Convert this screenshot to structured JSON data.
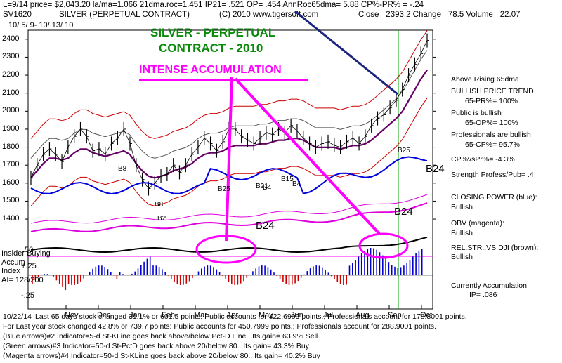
{
  "header": {
    "line1": "L=9/14  price= $2,043.20  la/ma=1.066 21dma.roc=1.451  IP21= .521  OP= .454  AnnRoc65dma= 5.88  CP%-PR% = -.24",
    "ticker": "SV1620",
    "contract": "SILVER (PERPETUAL CONTRACT)",
    "copyright": "(C) 2010 www.tigersoft.com",
    "close_text": "Close=   2393.2  Change= 78.5 Volume= 22.07",
    "date_range": "10/ 5/ 9-  10/ 13/ 10"
  },
  "title_overlay": {
    "line1": "SILVER - PERPETUAL",
    "line2": "CONTRACT - 2010",
    "callout": "INTENSE ACCUMULATION"
  },
  "colors": {
    "price": "#000000",
    "closing_power": "#0000dd",
    "obv": "#dd00dd",
    "relstr": "#000000",
    "ma": "#cc0000",
    "ma65": "#660066",
    "callout": "#ff00ff",
    "title": "#0a8a0a",
    "pos_bars": "#0000cc",
    "neg_bars": "#cc0000"
  },
  "chart_data": {
    "type": "line",
    "ylabel_ticks": [
      "2400",
      "2300",
      "2200",
      "2100",
      "2000",
      "1900",
      "1800",
      "1700",
      "1600",
      "1500",
      "1400"
    ],
    "y_ticks": [
      2400,
      2300,
      2200,
      2100,
      2000,
      1900,
      1800,
      1700,
      1600,
      1500,
      1400
    ],
    "months": [
      "Nov",
      "Dec",
      "Jan",
      "Feb",
      "Mar",
      "Apr",
      "May",
      "Jun",
      "Jul",
      "Aug",
      "Sep",
      "Oct"
    ],
    "ylim": [
      1330,
      2450
    ],
    "series": [
      {
        "x": [
          0,
          4,
          8,
          12,
          16,
          20,
          24,
          28,
          32,
          36,
          40,
          44,
          48,
          52,
          56,
          60,
          64,
          68,
          72,
          76,
          80,
          84,
          88,
          92,
          96,
          100,
          104,
          108,
          112,
          116,
          120,
          124,
          128,
          132,
          136,
          140,
          144,
          148,
          152,
          156,
          160,
          164,
          168,
          172,
          176,
          180,
          184,
          188,
          192,
          196,
          200,
          204,
          208,
          212,
          216,
          220,
          224,
          228,
          232,
          236,
          240,
          244,
          248,
          252,
          256
        ],
        "values": [
          1630,
          1700,
          1760,
          1790,
          1760,
          1720,
          1800,
          1860,
          1900,
          1860,
          1780,
          1790,
          1760,
          1820,
          1850,
          1900,
          1820,
          1700,
          1620,
          1570,
          1600,
          1640,
          1650,
          1700,
          1660,
          1700,
          1760,
          1800,
          1850,
          1820,
          1780,
          1830,
          1900,
          1900,
          1860,
          1840,
          1820,
          1850,
          1880,
          1870,
          1900,
          1880,
          1920,
          1890,
          1850,
          1820,
          1800,
          1820,
          1830,
          1810,
          1800,
          1830,
          1850,
          1820,
          1860,
          1920,
          1960,
          1980,
          2020,
          2060,
          2120,
          2200,
          2260,
          2320,
          2393
        ]
      }
    ],
    "ma_values": [
      1660,
      1700,
      1740,
      1770,
      1770,
      1760,
      1770,
      1800,
      1820,
      1820,
      1800,
      1790,
      1780,
      1790,
      1800,
      1810,
      1790,
      1740,
      1700,
      1670,
      1660,
      1670,
      1680,
      1700,
      1710,
      1720,
      1740,
      1770,
      1790,
      1800,
      1800,
      1810,
      1830,
      1840,
      1840,
      1840,
      1840,
      1850,
      1850,
      1860,
      1870,
      1870,
      1880,
      1880,
      1870,
      1850,
      1830,
      1830,
      1830,
      1830,
      1820,
      1830,
      1840,
      1840,
      1850,
      1870,
      1900,
      1930,
      1960,
      1990,
      2030,
      2090,
      2150,
      2210,
      2260
    ],
    "annotations": [
      "B8",
      "B8",
      "B2",
      "B25",
      "B21",
      "B4",
      "B15",
      "B4",
      "B25",
      "B24",
      "B24",
      "B24"
    ],
    "accum_label": "Accum",
    "index_label": "Index",
    "insider_label": "Insider Buying",
    "ai_label": "AI= 128/200",
    "accum_ticks": [
      ".50",
      "+.25",
      "-.25"
    ]
  },
  "right_panel": {
    "above_ma": "Above Rising 65dma",
    "trend_title": "BULLISH PRICE TREND",
    "trend_val": "65-PR%= 100%",
    "public_title": "Public is bullish",
    "public_val": "65-OP%= 100%",
    "pro_title": "Professionals are bullish",
    "pro_val": "65-CP%= 95.7%",
    "cpvs": "CP%vsPr%= -4.3%",
    "strength": "Strength Profess/Pub= .4",
    "cp_title": "CLOSING POWER (blue):",
    "cp_val": "Bullish",
    "obv_title": "OBV (magenta):",
    "obv_val": "Bullish",
    "rel_title": "REL.STR..VS DJI (brown):",
    "rel_val": "Bullish",
    "cur_title": "Currently Accumulation",
    "cur_val": "IP=  .086"
  },
  "footer": {
    "line1": "Last 65 days stock changed  31.1% or  601.5 points:  Public accounts for  422.6999 points.;  Professionals account for  178.8001 points.",
    "line2": "For Last year stock changed  42.8% or  739.7 points:  Public accounts for  450.7999 points.;  Professionals account for  288.9001 points.",
    "line3": "(Blue arrows)#2 Indicator=5-d St-KLine goes back above/below Pct-D Line.. Its gain= 63.9% Sell",
    "line4": "(Green arrows)#3 Indicator=50-d St-PctD goes back above 20/below 80.. Its gain= 43.3% Buy",
    "line5": "(Magenta arrows)#4 Indicator=50-d St-KLine goes back above 20/below 80.. Its gain= 40.2% Buy",
    "date_left": "10/22/14"
  }
}
